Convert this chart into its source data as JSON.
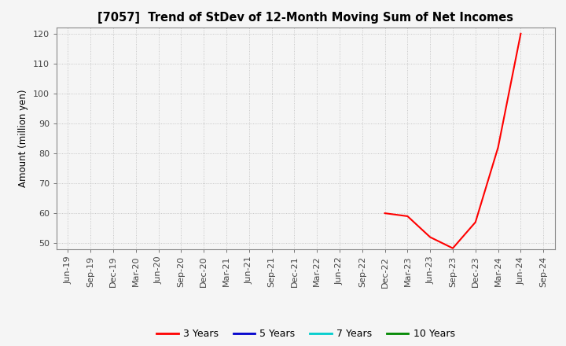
{
  "title": "[7057]  Trend of StDev of 12-Month Moving Sum of Net Incomes",
  "ylabel": "Amount (million yen)",
  "ylim": [
    48,
    122
  ],
  "yticks": [
    50,
    60,
    70,
    80,
    90,
    100,
    110,
    120
  ],
  "background_color": "#f5f5f5",
  "plot_bg_color": "#f5f5f5",
  "grid_color": "#bbbbbb",
  "line_3y": {
    "dates": [
      "Dec-22",
      "Mar-23",
      "Jun-23",
      "Sep-23",
      "Dec-23",
      "Mar-24",
      "Jun-24"
    ],
    "values": [
      60.0,
      59.0,
      52.0,
      48.3,
      57.0,
      82.0,
      120.0
    ],
    "color": "#ff0000",
    "linewidth": 1.5
  },
  "legend_entries": [
    {
      "label": "3 Years",
      "color": "#ff0000"
    },
    {
      "label": "5 Years",
      "color": "#0000cc"
    },
    {
      "label": "7 Years",
      "color": "#00cccc"
    },
    {
      "label": "10 Years",
      "color": "#008800"
    }
  ],
  "xticklabels": [
    "Jun-19",
    "Sep-19",
    "Dec-19",
    "Mar-20",
    "Jun-20",
    "Sep-20",
    "Dec-20",
    "Mar-21",
    "Jun-21",
    "Sep-21",
    "Dec-21",
    "Mar-22",
    "Jun-22",
    "Sep-22",
    "Dec-22",
    "Mar-23",
    "Jun-23",
    "Sep-23",
    "Dec-23",
    "Mar-24",
    "Jun-24",
    "Sep-24"
  ],
  "title_fontsize": 10.5,
  "axis_fontsize": 8,
  "ylabel_fontsize": 8.5,
  "legend_fontsize": 9
}
